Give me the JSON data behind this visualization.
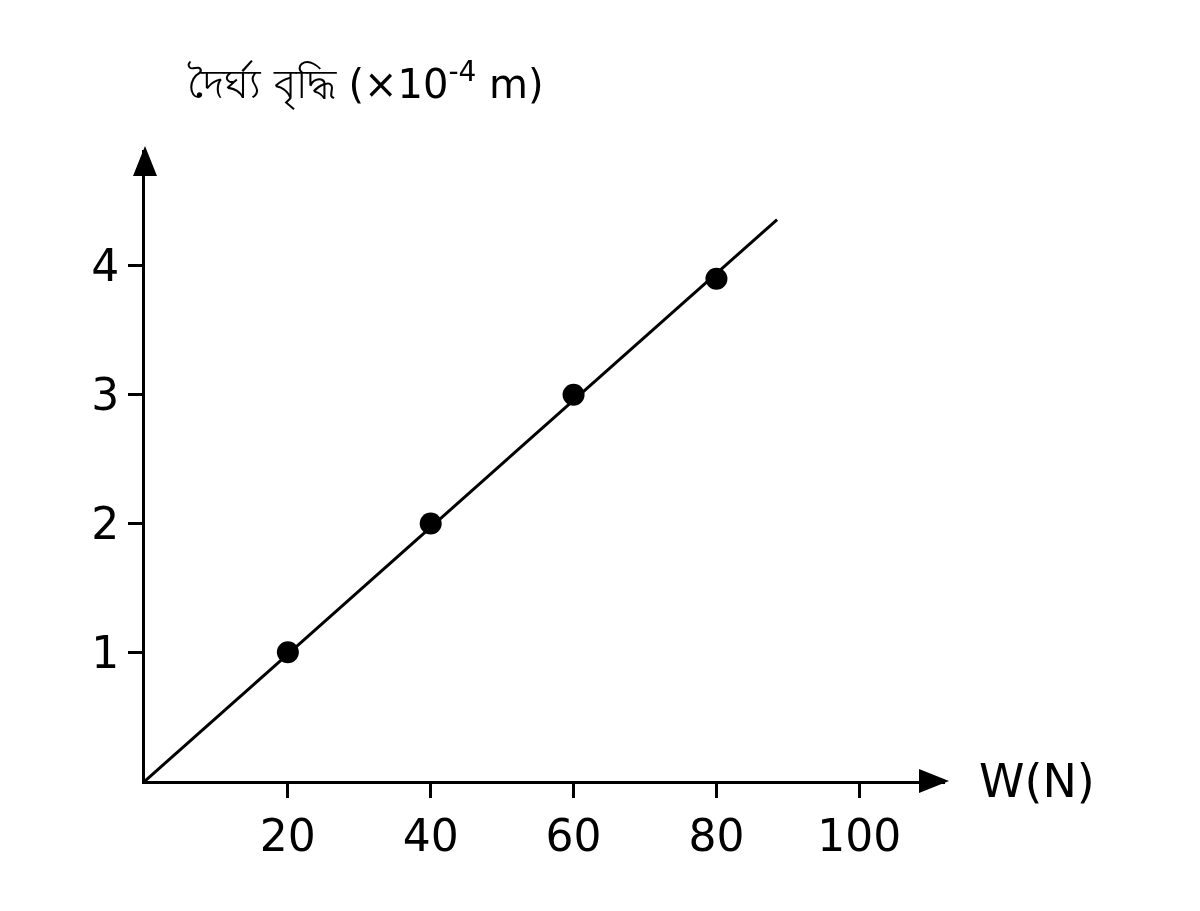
{
  "chart_data": {
    "type": "scatter",
    "ylabel": "দৈর্ঘ্য বৃদ্ধি (×10$^{-4}$ m)",
    "xlabel": "W(N)",
    "xlim": [
      0,
      112
    ],
    "xticks": [
      20,
      40,
      60,
      80,
      100
    ],
    "ylim": [
      0,
      4.9
    ],
    "yticks": [
      1,
      2,
      3,
      4
    ],
    "series": [
      {
        "type": "line",
        "color": "#000000",
        "x": [
          0,
          88.5
        ],
        "values": [
          0,
          4.36
        ],
        "marker": "none",
        "line_style": "solid"
      },
      {
        "color": "#000000",
        "x": [
          20,
          40,
          60,
          80
        ],
        "values": [
          1,
          2,
          3,
          3.9
        ],
        "marker": "circle"
      }
    ]
  }
}
